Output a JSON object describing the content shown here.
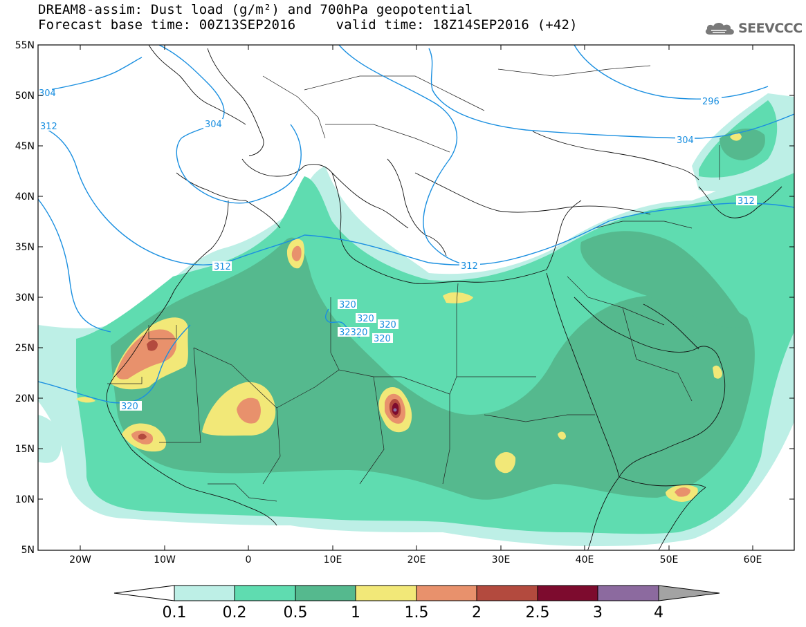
{
  "title": {
    "line1": "DREAM8-assim: Dust load (g/m²) and 700hPa geopotential",
    "line2": "Forecast base time: 00Z13SEP2016     valid time: 18Z14SEP2016 (+42)"
  },
  "logo": {
    "text": "SEEVCCC",
    "icon": "cloud-logo-icon"
  },
  "axes": {
    "lat_labels": [
      "55N",
      "50N",
      "45N",
      "40N",
      "35N",
      "30N",
      "25N",
      "20N",
      "15N",
      "10N",
      "5N"
    ],
    "lon_labels": [
      "20W",
      "10W",
      "0",
      "10E",
      "20E",
      "30E",
      "40E",
      "50E",
      "60E"
    ]
  },
  "contours": {
    "color": "#1a8fe0",
    "labels": [
      "304",
      "312",
      "296",
      "304",
      "304",
      "312",
      "312",
      "312",
      "320",
      "320",
      "320",
      "32320",
      "320",
      "320"
    ]
  },
  "colorbar": {
    "labels": [
      "0.1",
      "0.2",
      "0.5",
      "1",
      "1.5",
      "2",
      "2.5",
      "3",
      "4"
    ],
    "colors": [
      "#ffffff",
      "#bdefe6",
      "#5fdcb0",
      "#55b98e",
      "#f2e878",
      "#e8916c",
      "#b34a3e",
      "#7d0b2e",
      "#8c6a9f",
      "#a3a3a3"
    ]
  }
}
